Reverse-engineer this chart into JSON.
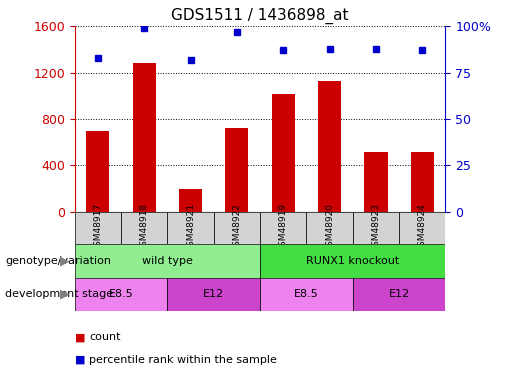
{
  "title": "GDS1511 / 1436898_at",
  "samples": [
    "GSM48917",
    "GSM48918",
    "GSM48921",
    "GSM48922",
    "GSM48919",
    "GSM48920",
    "GSM48923",
    "GSM48924"
  ],
  "counts": [
    700,
    1280,
    200,
    720,
    1020,
    1130,
    520,
    520
  ],
  "percentiles": [
    83,
    99,
    82,
    97,
    87,
    88,
    88,
    87
  ],
  "ylim_left": [
    0,
    1600
  ],
  "ylim_right": [
    0,
    100
  ],
  "yticks_left": [
    0,
    400,
    800,
    1200,
    1600
  ],
  "yticks_right": [
    0,
    25,
    50,
    75,
    100
  ],
  "bar_color": "#cc0000",
  "dot_color": "#0000cc",
  "bar_width": 0.5,
  "genotype_groups": [
    {
      "label": "wild type",
      "start": 0,
      "end": 4,
      "color": "#90ee90"
    },
    {
      "label": "RUNX1 knockout",
      "start": 4,
      "end": 8,
      "color": "#44dd44"
    }
  ],
  "stage_groups": [
    {
      "label": "E8.5",
      "start": 0,
      "end": 2,
      "color": "#ee82ee"
    },
    {
      "label": "E12",
      "start": 2,
      "end": 4,
      "color": "#cc44cc"
    },
    {
      "label": "E8.5",
      "start": 4,
      "end": 6,
      "color": "#ee82ee"
    },
    {
      "label": "E12",
      "start": 6,
      "end": 8,
      "color": "#cc44cc"
    }
  ],
  "genotype_label": "genotype/variation",
  "stage_label": "development stage",
  "legend_count": "count",
  "legend_percentile": "percentile rank within the sample",
  "tick_color_left": "#cc0000",
  "tick_color_right": "#0000cc",
  "sample_bg_color": "#d3d3d3"
}
